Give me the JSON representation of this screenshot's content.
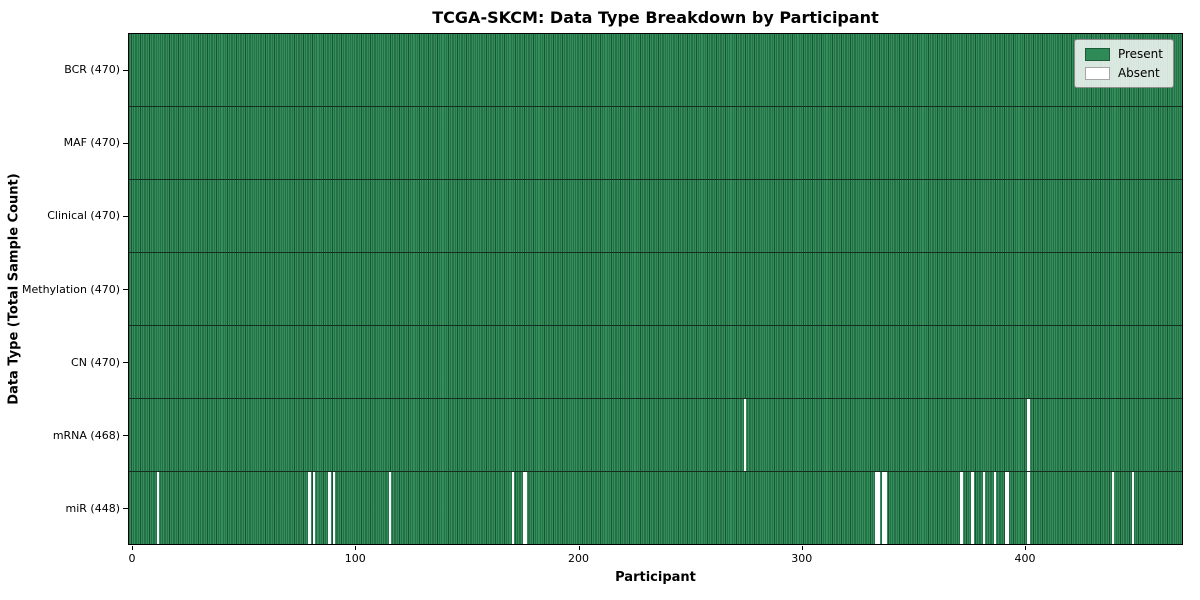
{
  "title": "TCGA-SKCM: Data Type Breakdown by Participant",
  "axes": {
    "xlabel": "Participant",
    "ylabel": "Data Type (Total Sample Count)"
  },
  "legend": {
    "present_label": "Present",
    "absent_label": "Absent"
  },
  "colors": {
    "present": "#2e8b57",
    "absent": "#ffffff",
    "legend_swatch_edge": "rgba(0,0,0,0.35)"
  },
  "chart_data": {
    "type": "heatmap",
    "title": "TCGA-SKCM: Data Type Breakdown by Participant",
    "xlabel": "Participant",
    "ylabel": "Data Type (Total Sample Count)",
    "legend": [
      "Present",
      "Absent"
    ],
    "legend_position": "upper right",
    "x_ticks": [
      0,
      100,
      200,
      300,
      400
    ],
    "x_range": [
      0,
      470
    ],
    "n_participants": 470,
    "grid": false,
    "rows": [
      {
        "name": "BCR",
        "label": "BCR (470)",
        "present_count": 470,
        "absent_participants": []
      },
      {
        "name": "MAF",
        "label": "MAF (470)",
        "present_count": 470,
        "absent_participants": []
      },
      {
        "name": "Clinical",
        "label": "Clinical (470)",
        "present_count": 470,
        "absent_participants": []
      },
      {
        "name": "Methylation",
        "label": "Methylation (470)",
        "present_count": 470,
        "absent_participants": []
      },
      {
        "name": "CN",
        "label": "CN (470)",
        "present_count": 470,
        "absent_participants": []
      },
      {
        "name": "mRNA",
        "label": "mRNA (468)",
        "present_count": 468,
        "absent_participants": [
          275,
          402
        ]
      },
      {
        "name": "miR",
        "label": "miR (448)",
        "present_count": 448,
        "absent_participants": [
          12,
          80,
          82,
          89,
          91,
          116,
          171,
          176,
          177,
          334,
          335,
          337,
          338,
          372,
          377,
          382,
          387,
          392,
          393,
          402,
          440,
          449
        ]
      }
    ]
  }
}
